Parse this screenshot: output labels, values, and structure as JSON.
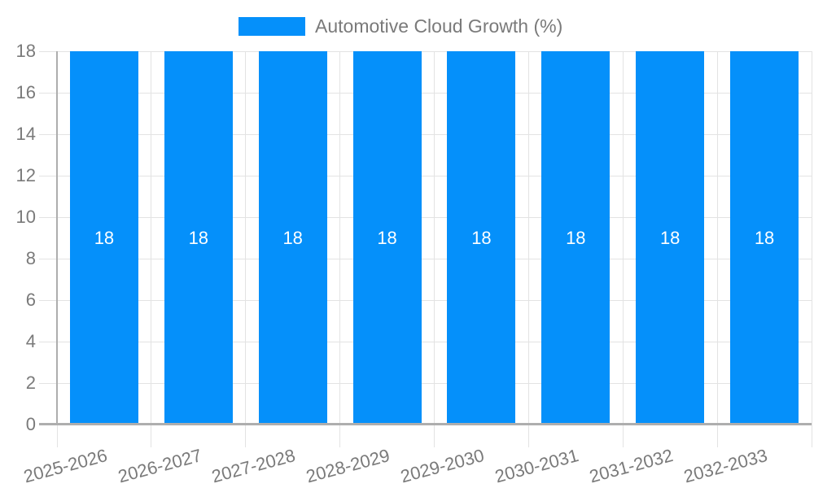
{
  "chart_data": {
    "type": "bar",
    "legend": "Automotive Cloud Growth (%)",
    "legend_position": "top",
    "categories": [
      "2025-2026",
      "2026-2027",
      "2027-2028",
      "2028-2029",
      "2029-2030",
      "2030-2031",
      "2031-2032",
      "2032-2033"
    ],
    "values": [
      18,
      18,
      18,
      18,
      18,
      18,
      18,
      18
    ],
    "bar_value_labels": [
      "18",
      "18",
      "18",
      "18",
      "18",
      "18",
      "18",
      "18"
    ],
    "ylim": [
      0,
      18
    ],
    "yticks": [
      0,
      2,
      4,
      6,
      8,
      10,
      12,
      14,
      16,
      18
    ],
    "ytick_step": 2,
    "grid": true,
    "xlabel_rotation_deg": -15,
    "colors": {
      "bar": "#0590fa",
      "grid": "#e3e3e3",
      "axis": "#aeaeae",
      "text": "#7a7a7a",
      "bar_label": "#ffffff",
      "background": "#ffffff"
    }
  }
}
